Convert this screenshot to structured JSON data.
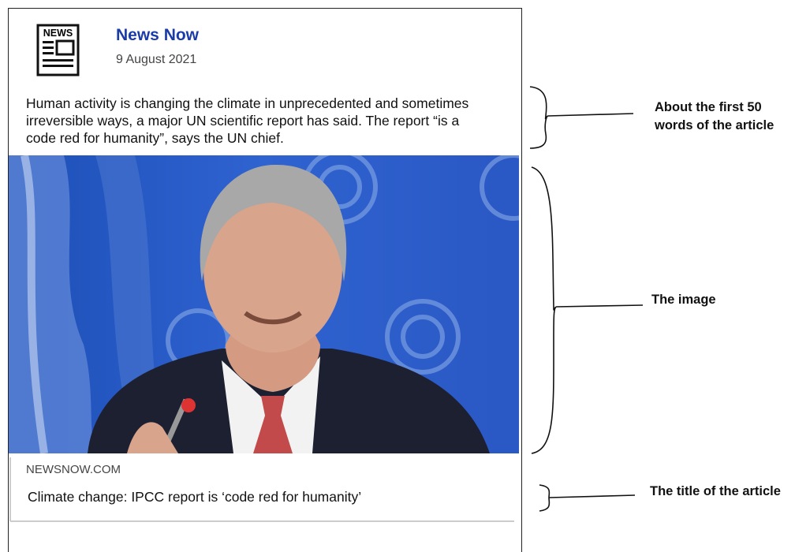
{
  "post": {
    "icon_text": "NEWS",
    "source_name": "News Now",
    "date": "9 August 2021",
    "excerpt_lines": [
      "Human activity is changing the climate in unprecedented and sometimes",
      "irreversible ways, a major UN scientific report has said. The report “is a",
      "code red for humanity”, says the UN chief."
    ],
    "link_domain": "NEWSNOW.COM",
    "link_title": "Climate change: IPCC report is ‘code red for humanity’"
  },
  "annotations": {
    "excerpt_lines": [
      "About the first 50",
      "words of the article"
    ],
    "image": "The image",
    "title": "The title of the article"
  }
}
